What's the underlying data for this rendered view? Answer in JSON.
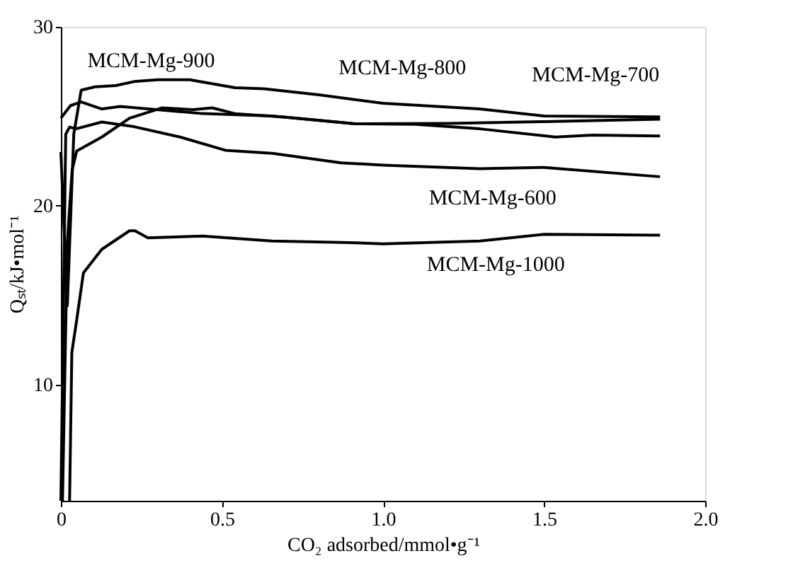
{
  "chart_data": {
    "type": "line",
    "xlabel": "CO₂ adsorbed/mmol•g⁻¹",
    "ylabel": "Qₛₜ/kJ•mol⁻¹",
    "xlim": [
      0,
      2.0
    ],
    "xticks": [
      {
        "value": 0,
        "label": "0"
      },
      0.5,
      {
        "value": 1.0,
        "label": "1.0"
      },
      1.5,
      {
        "value": 2.0,
        "label": "2.0"
      }
    ],
    "ylim": [
      3.5,
      30
    ],
    "yticks": [
      10,
      20,
      30
    ],
    "grid": false,
    "marker": "none",
    "line_style": "solid",
    "series": [
      {
        "color": "#000000",
        "x": [
          0,
          0.02,
          0.04,
          0.063,
          0.106,
          0.17,
          0.227,
          0.3,
          0.4,
          0.54,
          0.63,
          0.8,
          1.0,
          1.3,
          1.5,
          1.86
        ],
        "values": [
          23.0,
          14.4,
          24.0,
          26.46,
          26.65,
          26.72,
          26.94,
          27.04,
          27.04,
          26.6,
          26.54,
          26.2,
          25.73,
          25.41,
          25.02,
          24.97
        ]
      },
      {
        "color": "#000000",
        "x": [
          0,
          0.03,
          0.063,
          0.127,
          0.184,
          0.44,
          0.656,
          0.913,
          1.2,
          1.5,
          1.86
        ],
        "values": [
          24.9,
          25.6,
          25.8,
          25.41,
          25.55,
          25.15,
          25.02,
          24.58,
          24.6,
          24.7,
          24.84
        ]
      },
      {
        "color": "#000000",
        "x": [
          0.005,
          0.02,
          0.035,
          0.049,
          0.127,
          0.213,
          0.313,
          0.41,
          0.47,
          0.54,
          0.7,
          0.913,
          1.1,
          1.3,
          1.535,
          1.65,
          1.86
        ],
        "values": [
          3.5,
          18.0,
          22.0,
          23.06,
          23.84,
          24.89,
          25.47,
          25.37,
          25.47,
          25.15,
          24.95,
          24.58,
          24.55,
          24.3,
          23.84,
          23.95,
          23.9
        ]
      },
      {
        "color": "#000000",
        "x": [
          0,
          0.015,
          0.027,
          0.047,
          0.127,
          0.227,
          0.37,
          0.51,
          0.656,
          0.87,
          1.0,
          1.3,
          1.5,
          1.86
        ],
        "values": [
          3.5,
          24.0,
          24.4,
          24.3,
          24.68,
          24.42,
          23.84,
          23.1,
          22.93,
          22.4,
          22.27,
          22.07,
          22.14,
          21.62
        ]
      },
      {
        "color": "#000000",
        "x": [
          0.027,
          0.034,
          0.049,
          0.07,
          0.127,
          0.213,
          0.23,
          0.27,
          0.44,
          0.656,
          0.87,
          1.0,
          1.3,
          1.5,
          1.86
        ],
        "values": [
          3.5,
          11.8,
          13.6,
          16.25,
          17.56,
          18.6,
          18.6,
          18.2,
          18.3,
          18.03,
          17.95,
          17.87,
          18.03,
          18.4,
          18.35
        ]
      }
    ],
    "annotations": [
      "MCM-Mg-900",
      "MCM-Mg-800",
      "MCM-Mg-700",
      "MCM-Mg-600",
      "MCM-Mg-1000"
    ]
  }
}
